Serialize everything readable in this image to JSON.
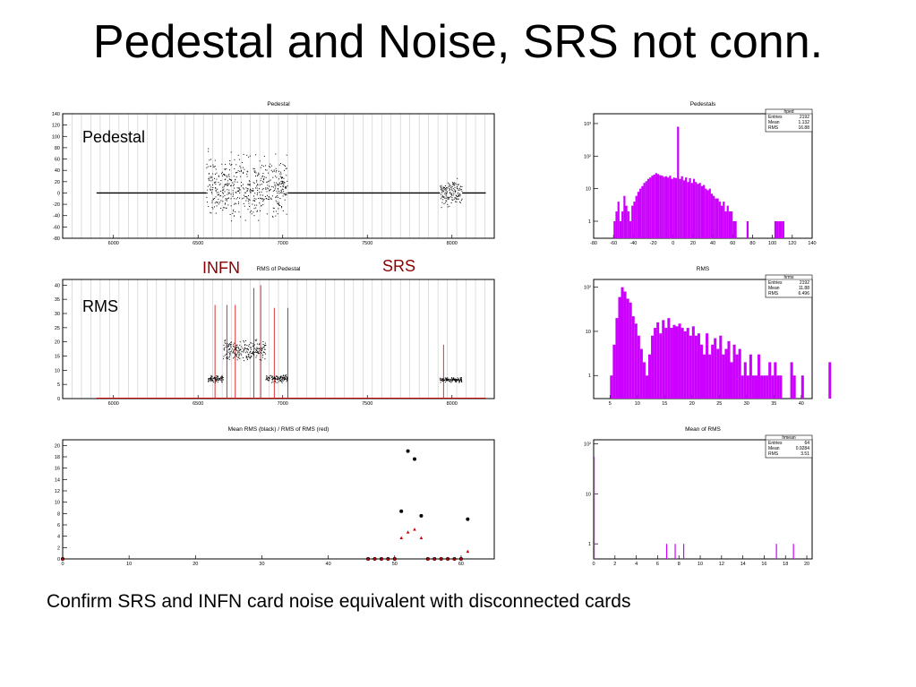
{
  "page": {
    "title": "Pedestal and Noise, SRS not conn.",
    "caption": "Confirm SRS and INFN card noise equivalent with disconnected cards",
    "annotations": {
      "pedestal": "Pedestal",
      "rms": "RMS",
      "infn": "INFN",
      "srs": "SRS"
    }
  },
  "colors": {
    "black": "#000000",
    "red": "#cc0000",
    "histogram": "#cc00ff",
    "annotation_red": "#8b0000"
  },
  "chart_data": [
    {
      "id": "ped",
      "type": "scatter",
      "title": "Pedestal",
      "xlim": [
        5700,
        8250
      ],
      "ylim": [
        -80,
        140
      ],
      "xticks": [
        6000,
        6500,
        7000,
        7500,
        8000
      ],
      "yticks": [
        -80,
        -60,
        -40,
        -20,
        0,
        20,
        40,
        60,
        80,
        100,
        120,
        140
      ],
      "grid_vertical": true,
      "series": [
        {
          "segments": [
            {
              "x0": 5900,
              "x1": 6550,
              "mode": "flat",
              "y": 0
            },
            {
              "x0": 6550,
              "x1": 7030,
              "mode": "spread",
              "center": 10,
              "spread": 35,
              "min": -60,
              "max": 90
            },
            {
              "x0": 7030,
              "x1": 7930,
              "mode": "flat",
              "y": 0
            },
            {
              "x0": 7930,
              "x1": 8060,
              "mode": "spread",
              "center": 0,
              "spread": 15,
              "min": -30,
              "max": 50
            },
            {
              "x0": 8060,
              "x1": 8200,
              "mode": "flat",
              "y": 0
            }
          ]
        }
      ]
    },
    {
      "id": "rms",
      "type": "scatter",
      "title": "RMS of Pedestal",
      "xlim": [
        5700,
        8250
      ],
      "ylim": [
        0,
        42
      ],
      "xticks": [
        6000,
        6500,
        7000,
        7500,
        8000
      ],
      "yticks": [
        0,
        5,
        10,
        15,
        20,
        25,
        30,
        35,
        40
      ],
      "grid_vertical": true,
      "series": [
        {
          "name": "black",
          "segments": [
            {
              "x0": 6560,
              "x1": 6650,
              "y": 7,
              "spread": 1.5
            },
            {
              "x0": 6650,
              "x1": 6900,
              "y": 17,
              "spread": 4
            },
            {
              "x0": 6900,
              "x1": 7030,
              "y": 7,
              "spread": 1.5
            },
            {
              "x0": 7930,
              "x1": 8060,
              "y": 6.5,
              "spread": 1
            }
          ]
        },
        {
          "name": "red",
          "baseline": 0,
          "x0": 5900,
          "x1": 8200,
          "spikes": [
            [
              6600,
              33
            ],
            [
              6670,
              33
            ],
            [
              6720,
              33
            ],
            [
              6830,
              39
            ],
            [
              6870,
              40
            ],
            [
              6950,
              32
            ],
            [
              7030,
              32
            ],
            [
              7950,
              19
            ]
          ]
        }
      ]
    },
    {
      "id": "mean",
      "type": "scatter",
      "title": "Mean RMS (black) / RMS of RMS (red)",
      "xlim": [
        0,
        65
      ],
      "ylim": [
        0,
        21
      ],
      "xticks": [
        0,
        10,
        20,
        30,
        40,
        50,
        60
      ],
      "yticks": [
        0,
        2,
        4,
        6,
        8,
        10,
        12,
        14,
        16,
        18,
        20
      ],
      "series": [
        {
          "name": "Mean RMS",
          "points": [
            [
              0,
              0
            ],
            [
              46,
              0
            ],
            [
              47,
              0
            ],
            [
              48,
              0
            ],
            [
              49,
              0
            ],
            [
              50,
              0
            ],
            [
              51,
              8.4
            ],
            [
              52,
              19
            ],
            [
              53,
              17.6
            ],
            [
              54,
              7.6
            ],
            [
              55,
              0
            ],
            [
              56,
              0
            ],
            [
              57,
              0
            ],
            [
              58,
              0
            ],
            [
              59,
              0
            ],
            [
              60,
              0
            ],
            [
              61,
              7
            ]
          ]
        },
        {
          "name": "RMS of RMS",
          "points": [
            [
              0,
              0
            ],
            [
              46,
              0
            ],
            [
              47,
              0
            ],
            [
              48,
              0
            ],
            [
              49,
              0
            ],
            [
              50,
              0
            ],
            [
              51,
              3.7
            ],
            [
              52,
              4.7
            ],
            [
              53,
              5.2
            ],
            [
              54,
              3.7
            ],
            [
              55,
              0
            ],
            [
              56,
              0
            ],
            [
              57,
              0
            ],
            [
              58,
              0
            ],
            [
              59,
              0
            ],
            [
              60,
              0
            ],
            [
              61,
              1.3
            ]
          ]
        }
      ]
    },
    {
      "id": "hped",
      "type": "bar",
      "title": "Pedestals",
      "log_y": true,
      "xlim": [
        -80,
        140
      ],
      "ylim": [
        0.3,
        2000
      ],
      "xticks": [
        -80,
        -60,
        -40,
        -20,
        0,
        20,
        40,
        60,
        80,
        100,
        120,
        140
      ],
      "ytick_labels": [
        "1",
        "10",
        "10²",
        "10³"
      ],
      "stats": {
        "name": "hped",
        "rows": [
          [
            "Entries",
            "2192"
          ],
          [
            "Mean",
            "1.132"
          ],
          [
            "RMS",
            "16.88"
          ]
        ]
      },
      "bins": {
        "start": -60,
        "width": 2,
        "values": [
          1,
          2,
          4,
          1,
          2,
          6,
          3,
          2,
          1,
          3,
          4,
          6,
          8,
          10,
          12,
          15,
          17,
          20,
          22,
          25,
          27,
          30,
          28,
          26,
          25,
          23,
          24,
          22,
          25,
          20,
          22,
          21,
          800,
          20,
          24,
          18,
          22,
          16,
          21,
          15,
          20,
          16,
          14,
          15,
          12,
          13,
          10,
          9,
          10,
          7,
          6,
          5,
          5,
          4,
          3,
          4,
          2,
          3,
          2,
          2,
          1,
          1,
          0,
          0,
          0,
          0,
          0,
          1,
          0,
          0,
          0,
          0,
          0,
          0,
          0,
          0,
          0,
          0,
          0,
          0,
          0,
          1,
          1,
          1,
          1,
          1,
          0,
          0,
          0,
          0,
          0,
          0,
          0,
          0,
          0,
          0,
          0,
          0,
          0,
          0
        ]
      }
    },
    {
      "id": "hrms",
      "type": "bar",
      "title": "RMS",
      "log_y": true,
      "xlim": [
        2,
        42
      ],
      "ylim": [
        0.3,
        150
      ],
      "xticks": [
        5,
        10,
        15,
        20,
        25,
        30,
        35,
        40
      ],
      "ytick_labels": [
        "1",
        "10",
        "10²"
      ],
      "stats": {
        "name": "hrms",
        "rows": [
          [
            "Entries",
            "2192"
          ],
          [
            "Mean",
            "11.88"
          ],
          [
            "RMS",
            "6.496"
          ]
        ]
      },
      "bins": {
        "start": 5,
        "width": 0.5,
        "values": [
          1,
          5,
          20,
          60,
          100,
          80,
          55,
          45,
          22,
          15,
          8,
          4,
          2,
          1,
          3,
          8,
          12,
          16,
          9,
          18,
          12,
          20,
          12,
          14,
          13,
          15,
          12,
          10,
          12,
          8,
          13,
          8,
          9,
          5,
          3,
          9,
          3,
          5,
          7,
          4,
          8,
          3,
          4,
          6,
          2,
          5,
          3,
          4,
          1,
          2,
          1,
          3,
          1,
          1,
          3,
          1,
          1,
          1,
          2,
          1,
          2,
          1,
          1,
          0,
          0,
          0,
          2,
          1,
          0,
          0,
          1,
          0,
          0,
          0,
          0,
          0,
          0,
          0,
          0,
          0,
          2
        ]
      }
    },
    {
      "id": "hmean",
      "type": "bar",
      "title": "Mean of RMS",
      "log_y": true,
      "xlim": [
        0,
        20.5
      ],
      "ylim": [
        0.5,
        120
      ],
      "xticks": [
        0,
        2,
        4,
        6,
        8,
        10,
        12,
        14,
        16,
        18,
        20
      ],
      "ytick_labels": [
        "1",
        "10",
        "10²"
      ],
      "stats": {
        "name": "hmean",
        "rows": [
          [
            "Entries",
            "64"
          ],
          [
            "Mean",
            "0.9284"
          ],
          [
            "RMS",
            "3.51"
          ]
        ]
      },
      "bins": {
        "start": 0,
        "width": 0.1,
        "values": {
          "0": 55,
          "68": 1,
          "76": 1,
          "84": 1,
          "171": 1,
          "187": 1
        }
      }
    }
  ]
}
